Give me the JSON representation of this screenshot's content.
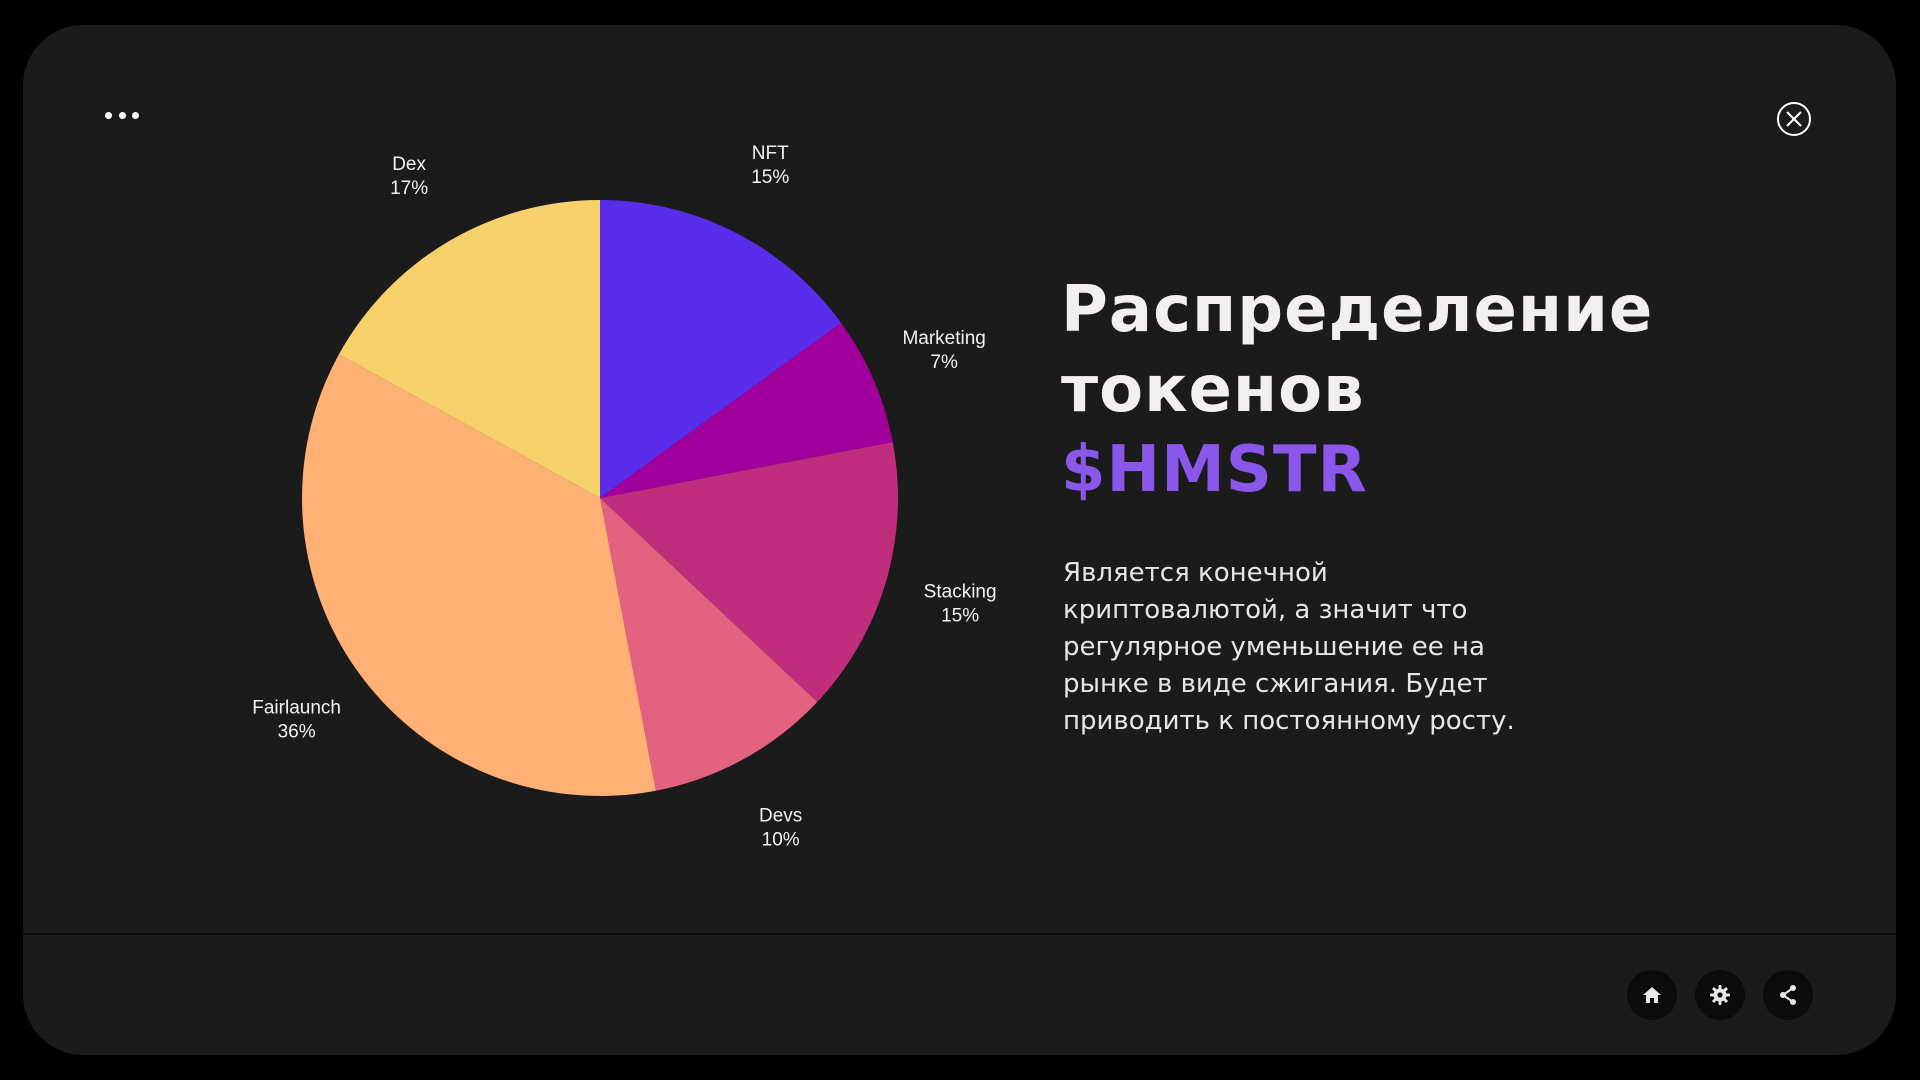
{
  "title": {
    "line1": "Распределение",
    "line2": "токенов",
    "accent": "$HMSTR"
  },
  "description": "Является конечной криптовалютой, а значит что регулярное уменьшение ее на рынке в виде сжигания. Будет приводить к постоянному росту.",
  "colors": {
    "background": "#1b1b1b",
    "accent": "#8a57ea"
  },
  "icons": {
    "menu": "more-dots-icon",
    "close": "close-icon",
    "home": "home-icon",
    "settings": "gear-icon",
    "share": "share-icon"
  },
  "chart_data": {
    "type": "pie",
    "slices": [
      {
        "label": "NFT",
        "percent": "15%",
        "value": 15,
        "color": "#5a2cec"
      },
      {
        "label": "Marketing",
        "percent": "7%",
        "value": 7,
        "color": "#a1009c"
      },
      {
        "label": "Stacking",
        "percent": "15%",
        "value": 15,
        "color": "#c02d7d"
      },
      {
        "label": "Devs",
        "percent": "10%",
        "value": 10,
        "color": "#e3627f"
      },
      {
        "label": "Fairlaunch",
        "percent": "36%",
        "value": 36,
        "color": "#ffb074"
      },
      {
        "label": "Dex",
        "percent": "17%",
        "value": 17,
        "color": "#f6d06a"
      }
    ]
  }
}
